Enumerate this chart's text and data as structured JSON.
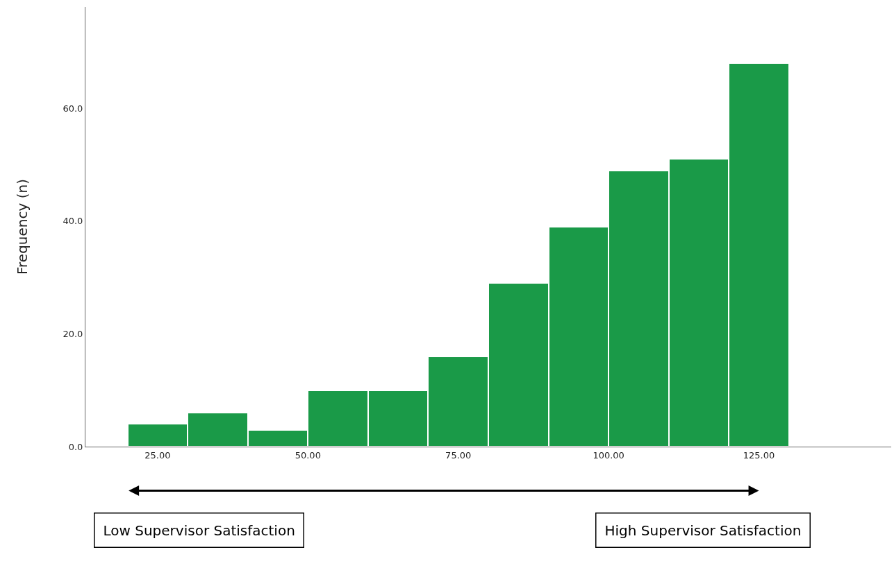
{
  "chart_data": {
    "type": "histogram",
    "ylabel": "Frequency (n)",
    "bins": [
      20,
      30,
      40,
      50,
      60,
      70,
      80,
      90,
      100,
      110,
      120,
      130
    ],
    "values": [
      4,
      6,
      3,
      10,
      10,
      16,
      29,
      39,
      49,
      51,
      68
    ],
    "color": "#1a9a48",
    "xlim": [
      13,
      147
    ],
    "xticks": [
      {
        "value": 25,
        "label": "25.00"
      },
      {
        "value": 50,
        "label": "50.00"
      },
      {
        "value": 75,
        "label": "75.00"
      },
      {
        "value": 100,
        "label": "100.00"
      },
      {
        "value": 125,
        "label": "125.00"
      }
    ],
    "ylim": [
      0,
      78
    ],
    "yticks": [
      {
        "value": 0,
        "label": "0.0"
      },
      {
        "value": 20,
        "label": "20.0"
      },
      {
        "value": 40,
        "label": "40.0"
      },
      {
        "value": 60,
        "label": "60.0"
      }
    ],
    "legend": false,
    "annotations": [
      "Low Supervisor Satisfaction",
      "High Supervisor Satisfaction"
    ]
  }
}
